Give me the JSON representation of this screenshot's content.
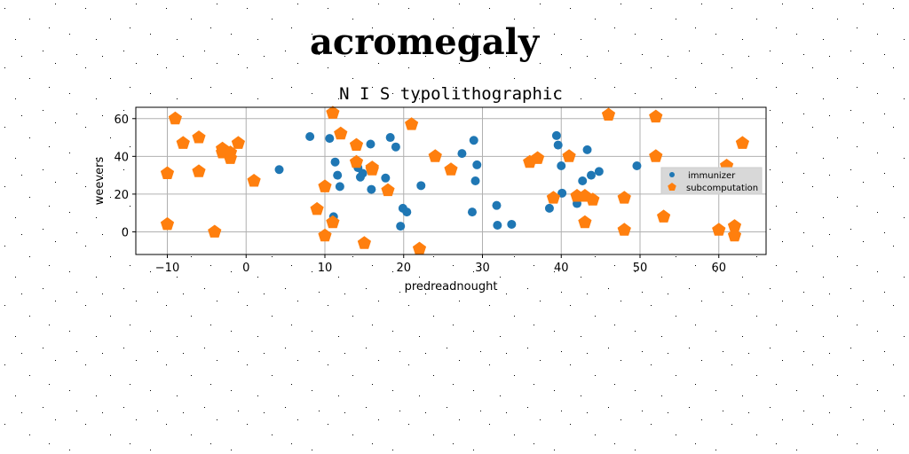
{
  "page": {
    "title": "acromegaly"
  },
  "chart_data": {
    "type": "scatter",
    "title": "N I S typolithographic",
    "xlabel": "predreadnought",
    "ylabel": "weevers",
    "xlim": [
      -14,
      66
    ],
    "ylim": [
      -12,
      66
    ],
    "xticks": [
      -10,
      0,
      10,
      20,
      30,
      40,
      50,
      60
    ],
    "yticks": [
      0,
      20,
      40,
      60
    ],
    "grid": true,
    "legend_position": "right",
    "series": [
      {
        "name": "immunizer",
        "color": "#1f77b4",
        "marker": "circle",
        "x": [
          4.2,
          8.1,
          10.6,
          11.1,
          11.3,
          11.6,
          11.9,
          14.2,
          14.5,
          14.8,
          15.8,
          15.9,
          17.7,
          18.3,
          19.0,
          19.6,
          19.9,
          20.4,
          22.2,
          27.4,
          28.7,
          28.9,
          29.1,
          29.3,
          31.8,
          31.9,
          33.7,
          38.5,
          39.4,
          39.6,
          40.0,
          40.1,
          42.0,
          42.7,
          43.3,
          43.8,
          44.8,
          49.6
        ],
        "y": [
          33,
          50.5,
          49.5,
          8,
          37,
          30,
          24,
          34,
          29,
          31,
          46.5,
          22.5,
          28.5,
          50,
          45,
          3,
          12.5,
          10.5,
          24.5,
          41.5,
          10.5,
          48.5,
          27,
          35.5,
          14,
          3.5,
          4,
          12.5,
          51,
          46,
          35,
          20.5,
          15,
          27,
          43.5,
          30,
          32,
          35
        ]
      },
      {
        "name": "subcomputation",
        "color": "#ff7f0e",
        "marker": "pentagon",
        "x": [
          -10,
          -10,
          -9,
          -8,
          -6,
          -6,
          -4,
          -3,
          -3,
          -2,
          -2,
          -1,
          1,
          9,
          10,
          10,
          11,
          11,
          12,
          14,
          14,
          15,
          16,
          16,
          18,
          21,
          22,
          24,
          26,
          36,
          37,
          39,
          41,
          42,
          43,
          43,
          44,
          46,
          48,
          48,
          52,
          52,
          53,
          60,
          61,
          62,
          62,
          63
        ],
        "y": [
          31,
          4,
          60,
          47,
          50,
          32,
          0,
          44,
          42,
          39,
          42,
          47,
          27,
          12,
          24,
          -2,
          63,
          5,
          52,
          46,
          37,
          -6,
          34,
          33,
          22,
          57,
          -9,
          40,
          33,
          37,
          39,
          18,
          40,
          19,
          19,
          5,
          17,
          62,
          18,
          1,
          61,
          40,
          8,
          1,
          35,
          3,
          -2,
          47
        ]
      }
    ]
  }
}
